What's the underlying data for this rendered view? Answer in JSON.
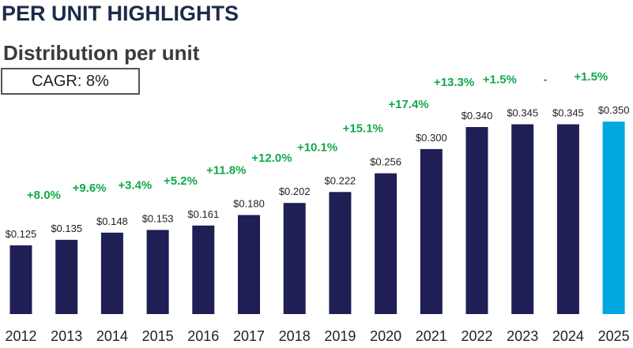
{
  "page": {
    "title": "PER UNIT HIGHLIGHTS"
  },
  "colors": {
    "bar": "#1f1f56",
    "highlight_bar": "#00a7e1",
    "growth_label": "#12a84a",
    "value_label": "#222222",
    "axis_label": "#222222",
    "title": "#1c2b4a"
  },
  "chart_data": {
    "type": "bar",
    "title": "Distribution per unit",
    "cagr_label": "CAGR: 8%",
    "xlabel": "",
    "ylabel": "",
    "ylim": [
      0,
      0.4
    ],
    "categories": [
      "2012",
      "2013",
      "2014",
      "2015",
      "2016",
      "2017",
      "2018",
      "2019",
      "2020",
      "2021",
      "2022",
      "2023",
      "2024",
      "2025"
    ],
    "values": [
      0.125,
      0.135,
      0.148,
      0.153,
      0.161,
      0.18,
      0.202,
      0.222,
      0.256,
      0.3,
      0.34,
      0.345,
      0.345,
      0.35
    ],
    "value_labels": [
      "$0.125",
      "$0.135",
      "$0.148",
      "$0.153",
      "$0.161",
      "$0.180",
      "$0.202",
      "$0.222",
      "$0.256",
      "$0.300",
      "$0.340",
      "$0.345",
      "$0.345",
      "$0.350"
    ],
    "growth_labels": [
      "+8.0%",
      "+9.6%",
      "+3.4%",
      "+5.2%",
      "+11.8%",
      "+12.0%",
      "+10.1%",
      "+15.1%",
      "+17.4%",
      "+13.3%",
      "+1.5%",
      "-",
      "+1.5%"
    ],
    "highlight_category": "2025",
    "grid": false,
    "legend": "none"
  }
}
